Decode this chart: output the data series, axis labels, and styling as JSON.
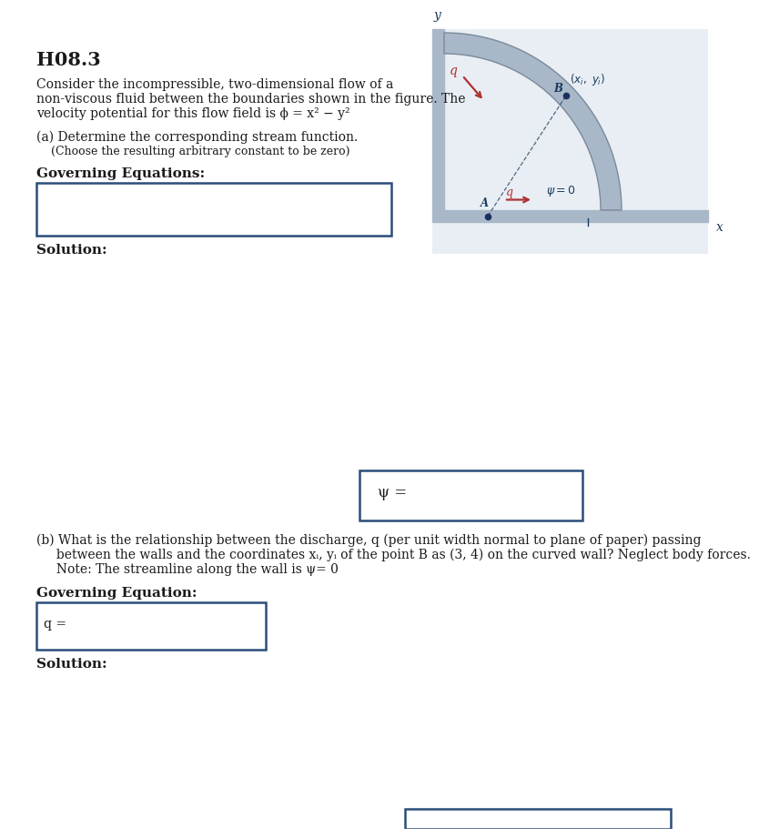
{
  "title": "H08.3",
  "bg_color": "#ffffff",
  "text_color": "#1a1a1a",
  "dark_blue": "#1a3a5c",
  "box_border_color": "#2a4d7a",
  "intro_text_line1": "Consider the incompressible, two-dimensional flow of a",
  "intro_text_line2": "non-viscous fluid between the boundaries shown in the figure. The",
  "intro_text_line3": "velocity potential for this flow field is ϕ = x² − y²",
  "part_a_line1": "(a) Determine the corresponding stream function.",
  "part_a_line2": "    (Choose the resulting arbitrary constant to be zero)",
  "governing_eq_a": "Governing Equations:",
  "solution_a": "Solution:",
  "psi_label": "ψ =",
  "part_b_line1": "(b) What is the relationship between the discharge, q (per unit width normal to plane of paper) passing",
  "part_b_line2": "     between the walls and the coordinates xᵢ, yᵢ of the point B as (3, 4) on the curved wall? Neglect body forces.",
  "part_b_line3": "     Note: The streamline along the wall is ψ= 0",
  "governing_eq_b": "Governing Equation:",
  "q_label": "q =",
  "solution_b": "Solution:",
  "diagram": {
    "bg_color": "#e8eef4",
    "wall_color": "#a8b8c8",
    "wall_dark": "#7a8a9a",
    "arrow_color": "#b03030",
    "label_color": "#1a3a5c",
    "axis_color": "#1a3a5c",
    "text_color": "#1a3a5c"
  }
}
